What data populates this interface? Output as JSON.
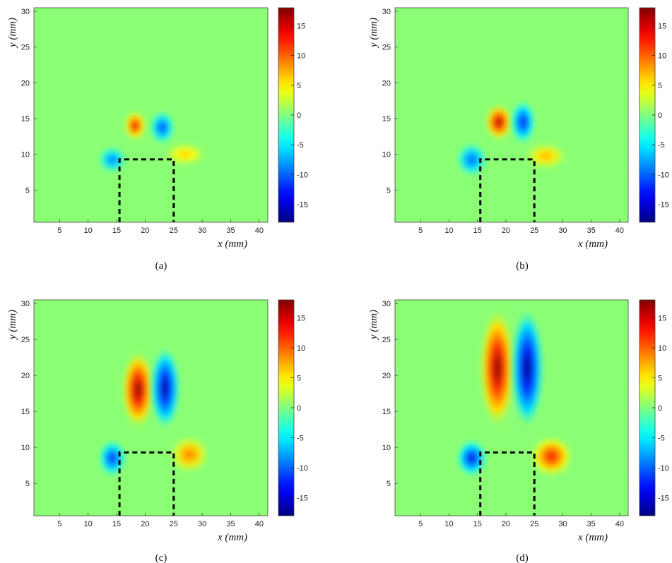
{
  "chart_data": [
    {
      "type": "heatmap",
      "caption": "(a)",
      "xlabel": "x (mm)",
      "ylabel": "y (mm)",
      "xlim": [
        0.5,
        41.5
      ],
      "ylim": [
        0.5,
        30.5
      ],
      "xticks": [
        5,
        10,
        15,
        20,
        25,
        30,
        35,
        40
      ],
      "yticks": [
        5,
        10,
        15,
        20,
        25,
        30
      ],
      "colorbar": {
        "range": [
          -18,
          18
        ],
        "ticks": [
          15,
          10,
          5,
          0,
          -5,
          -10,
          -15
        ],
        "colormap": "jet"
      },
      "obstacle": {
        "x": [
          15.5,
          25
        ],
        "y": [
          0.5,
          9.3
        ],
        "style": "dashed"
      },
      "features": [
        {
          "sign": "positive",
          "x": [
            17,
            19.5
          ],
          "y": [
            12.5,
            15.5
          ],
          "peak": 15
        },
        {
          "sign": "negative",
          "x": [
            21.5,
            24.5
          ],
          "y": [
            12,
            15.5
          ],
          "peak": -12
        },
        {
          "sign": "negative",
          "x": [
            12.5,
            16
          ],
          "y": [
            8,
            10.5
          ],
          "peak": -10
        },
        {
          "sign": "positive",
          "x": [
            24,
            30
          ],
          "y": [
            9,
            11
          ],
          "peak": 7
        }
      ]
    },
    {
      "type": "heatmap",
      "caption": "(b)",
      "xlabel": "x (mm)",
      "ylabel": "y (mm)",
      "xlim": [
        0.5,
        41.5
      ],
      "ylim": [
        0.5,
        30.5
      ],
      "xticks": [
        5,
        10,
        15,
        20,
        25,
        30,
        35,
        40
      ],
      "yticks": [
        5,
        10,
        15,
        20,
        25,
        30
      ],
      "colorbar": {
        "range": [
          -18,
          18
        ],
        "ticks": [
          15,
          10,
          5,
          0,
          -5,
          -10,
          -15
        ],
        "colormap": "jet"
      },
      "obstacle": {
        "x": [
          15.5,
          25
        ],
        "y": [
          0.5,
          9.3
        ],
        "style": "dashed"
      },
      "features": [
        {
          "sign": "positive",
          "x": [
            17,
            20.5
          ],
          "y": [
            12.5,
            16.5
          ],
          "peak": 17
        },
        {
          "sign": "negative",
          "x": [
            21.5,
            24.5
          ],
          "y": [
            12,
            17
          ],
          "peak": -14
        },
        {
          "sign": "negative",
          "x": [
            12,
            16
          ],
          "y": [
            7.5,
            11
          ],
          "peak": -11
        },
        {
          "sign": "positive",
          "x": [
            24,
            30
          ],
          "y": [
            8.5,
            11
          ],
          "peak": 8
        }
      ]
    },
    {
      "type": "heatmap",
      "caption": "(c)",
      "xlabel": "x (mm)",
      "ylabel": "y (mm)",
      "xlim": [
        0.5,
        41.5
      ],
      "ylim": [
        0.5,
        30.5
      ],
      "xticks": [
        5,
        10,
        15,
        20,
        25,
        30,
        35,
        40
      ],
      "yticks": [
        5,
        10,
        15,
        20,
        25,
        30
      ],
      "colorbar": {
        "range": [
          -18,
          18
        ],
        "ticks": [
          15,
          10,
          5,
          0,
          -5,
          -10,
          -15
        ],
        "colormap": "jet"
      },
      "obstacle": {
        "x": [
          15.5,
          25
        ],
        "y": [
          0.5,
          9.3
        ],
        "style": "dashed"
      },
      "features": [
        {
          "sign": "positive",
          "x": [
            16.5,
            21
          ],
          "y": [
            13,
            23
          ],
          "peak": 18
        },
        {
          "sign": "negative",
          "x": [
            21.5,
            25.5
          ],
          "y": [
            13,
            23.5
          ],
          "peak": -17
        },
        {
          "sign": "negative",
          "x": [
            12.5,
            16
          ],
          "y": [
            6.5,
            10.5
          ],
          "peak": -13
        },
        {
          "sign": "positive",
          "x": [
            25,
            30.5
          ],
          "y": [
            7,
            11
          ],
          "peak": 10
        }
      ]
    },
    {
      "type": "heatmap",
      "caption": "(d)",
      "xlabel": "x (mm)",
      "ylabel": "y (mm)",
      "xlim": [
        0.5,
        41.5
      ],
      "ylim": [
        0.5,
        30.5
      ],
      "xticks": [
        5,
        10,
        15,
        20,
        25,
        30,
        35,
        40
      ],
      "yticks": [
        5,
        10,
        15,
        20,
        25,
        30
      ],
      "colorbar": {
        "range": [
          -18,
          18
        ],
        "ticks": [
          15,
          10,
          5,
          0,
          -5,
          -10,
          -15
        ],
        "colormap": "jet"
      },
      "obstacle": {
        "x": [
          15.5,
          25
        ],
        "y": [
          0.5,
          9.3
        ],
        "style": "dashed"
      },
      "features": [
        {
          "sign": "positive",
          "x": [
            16,
            21
          ],
          "y": [
            13,
            29
          ],
          "peak": 18
        },
        {
          "sign": "negative",
          "x": [
            21.5,
            26
          ],
          "y": [
            13,
            29
          ],
          "peak": -18
        },
        {
          "sign": "negative",
          "x": [
            12,
            16
          ],
          "y": [
            6.5,
            10.5
          ],
          "peak": -15
        },
        {
          "sign": "positive",
          "x": [
            25,
            31
          ],
          "y": [
            6.5,
            11
          ],
          "peak": 14
        }
      ]
    }
  ]
}
